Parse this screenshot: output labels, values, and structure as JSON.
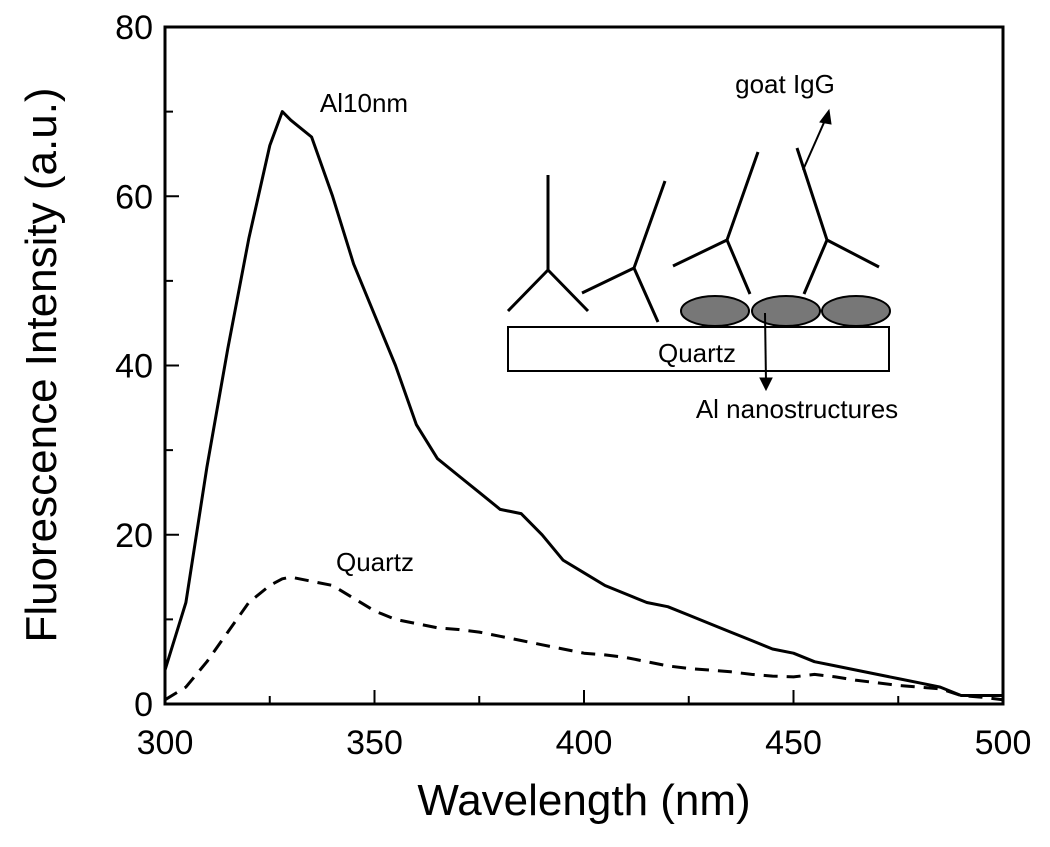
{
  "chart_data": {
    "type": "line",
    "x_label": "Wavelength (nm)",
    "y_label": "Fluorescence Intensity (a.u.)",
    "x": [
      300,
      305,
      310,
      315,
      320,
      325,
      328,
      330,
      335,
      340,
      345,
      350,
      355,
      360,
      365,
      370,
      375,
      380,
      385,
      390,
      395,
      400,
      405,
      410,
      415,
      420,
      425,
      430,
      435,
      440,
      445,
      450,
      455,
      460,
      465,
      470,
      475,
      480,
      485,
      490,
      495,
      500
    ],
    "series": [
      {
        "name": "Al10nm",
        "color": "#000000",
        "dash": "solid",
        "values": [
          4,
          12,
          28,
          42,
          55,
          66,
          70,
          69,
          67,
          60,
          52,
          46,
          40,
          33,
          29,
          27,
          25,
          23,
          22.5,
          20,
          17,
          15.5,
          14,
          13,
          12,
          11.5,
          10.5,
          9.5,
          8.5,
          7.5,
          6.5,
          6,
          5,
          4.5,
          4,
          3.5,
          3,
          2.5,
          2,
          1,
          1,
          1
        ]
      },
      {
        "name": "Quartz",
        "color": "#000000",
        "dash": "dashed",
        "values": [
          0.5,
          2,
          5,
          8.5,
          12,
          14,
          14.8,
          15,
          14.5,
          14,
          12.5,
          11,
          10,
          9.5,
          9,
          8.8,
          8.5,
          8,
          7.5,
          7,
          6.5,
          6,
          5.8,
          5.5,
          5,
          4.5,
          4.2,
          4,
          3.8,
          3.5,
          3.3,
          3.2,
          3.5,
          3.2,
          2.8,
          2.5,
          2.2,
          2,
          1.8,
          1,
          0.8,
          0.5
        ]
      }
    ],
    "xlim": [
      300,
      500
    ],
    "xticks": [
      300,
      350,
      400,
      450,
      500
    ],
    "xticks_minor": [
      325,
      375,
      425,
      475
    ],
    "ylim": [
      0,
      80
    ],
    "yticks": [
      0,
      20,
      40,
      60,
      80
    ],
    "yticks_minor": [
      10,
      30,
      50,
      70
    ],
    "grid": false,
    "inset": {
      "substrate": "Quartz",
      "antibody": "goat IgG",
      "particles": "Al nanostructures"
    }
  }
}
